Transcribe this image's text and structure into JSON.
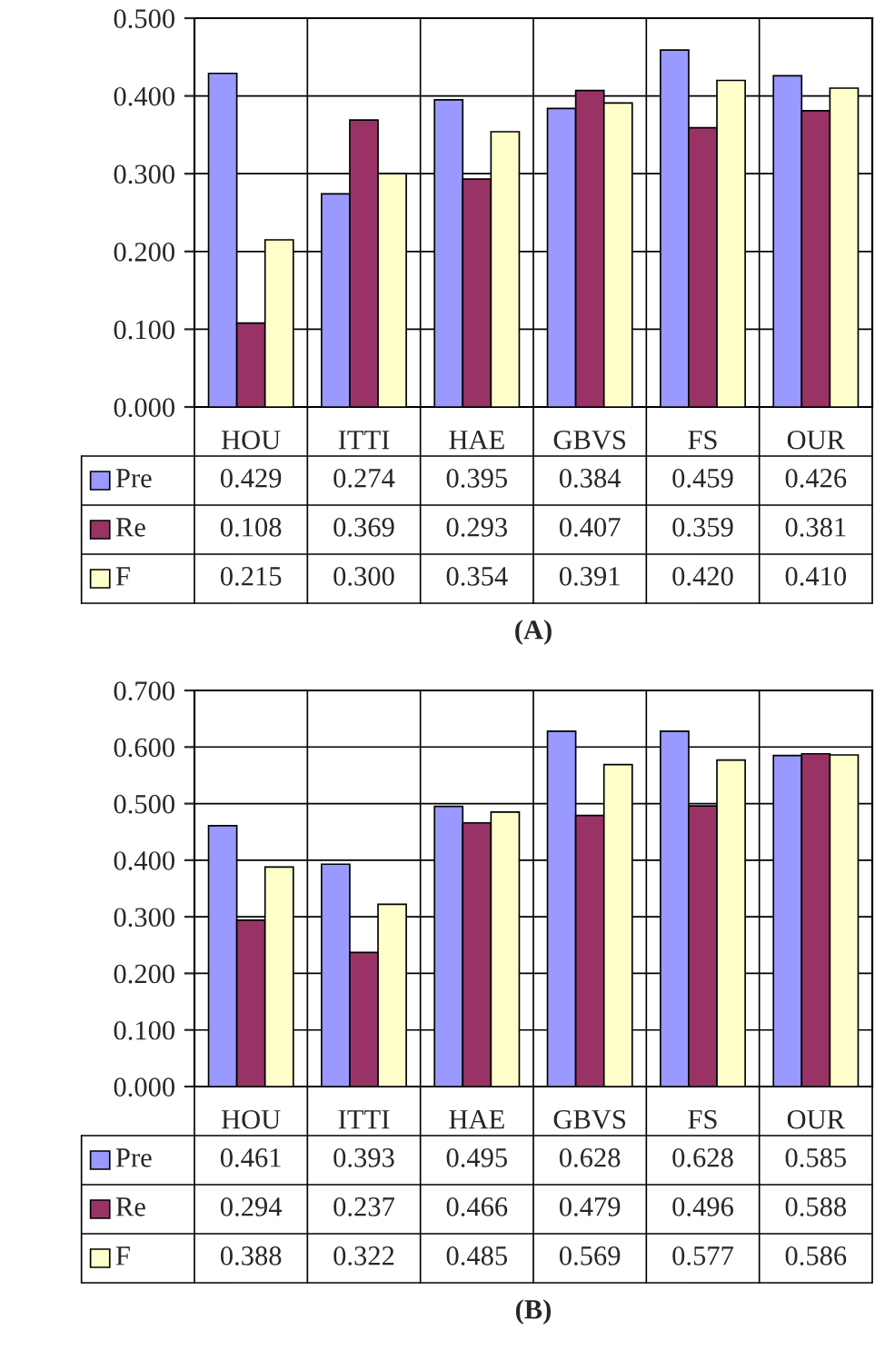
{
  "chart_data": [
    {
      "type": "bar",
      "title": "(A)",
      "categories": [
        "HOU",
        "ITTI",
        "HAE",
        "GBVS",
        "FS",
        "OUR"
      ],
      "series": [
        {
          "name": "Pre",
          "color": "#9999ff",
          "values": [
            0.429,
            0.274,
            0.395,
            0.384,
            0.459,
            0.426
          ],
          "value_labels": [
            "0.429",
            "0.274",
            "0.395",
            "0.384",
            "0.459",
            "0.426"
          ]
        },
        {
          "name": "Re",
          "color": "#993366",
          "values": [
            0.108,
            0.369,
            0.293,
            0.407,
            0.359,
            0.381
          ],
          "value_labels": [
            "0.108",
            "0.369",
            "0.293",
            "0.407",
            "0.359",
            "0.381"
          ]
        },
        {
          "name": "F",
          "color": "#ffffcc",
          "values": [
            0.215,
            0.3,
            0.354,
            0.391,
            0.42,
            0.41
          ],
          "value_labels": [
            "0.215",
            "0.300",
            "0.354",
            "0.391",
            "0.420",
            "0.410"
          ]
        }
      ],
      "ylim": [
        0,
        0.5
      ],
      "yticks": [
        {
          "value": 0,
          "label": "0.000"
        },
        {
          "value": 0.1,
          "label": "0.100"
        },
        {
          "value": 0.2,
          "label": "0.200"
        },
        {
          "value": 0.3,
          "label": "0.300"
        },
        {
          "value": 0.4,
          "label": "0.400"
        },
        {
          "value": 0.5,
          "label": "0.500"
        }
      ],
      "grid": true,
      "legend": "bottom"
    },
    {
      "type": "bar",
      "title": "(B)",
      "categories": [
        "HOU",
        "ITTI",
        "HAE",
        "GBVS",
        "FS",
        "OUR"
      ],
      "series": [
        {
          "name": "Pre",
          "color": "#9999ff",
          "values": [
            0.461,
            0.393,
            0.495,
            0.628,
            0.628,
            0.585
          ],
          "value_labels": [
            "0.461",
            "0.393",
            "0.495",
            "0.628",
            "0.628",
            "0.585"
          ]
        },
        {
          "name": "Re",
          "color": "#993366",
          "values": [
            0.294,
            0.237,
            0.466,
            0.479,
            0.496,
            0.588
          ],
          "value_labels": [
            "0.294",
            "0.237",
            "0.466",
            "0.479",
            "0.496",
            "0.588"
          ]
        },
        {
          "name": "F",
          "color": "#ffffcc",
          "values": [
            0.388,
            0.322,
            0.485,
            0.569,
            0.577,
            0.586
          ],
          "value_labels": [
            "0.388",
            "0.322",
            "0.485",
            "0.569",
            "0.577",
            "0.586"
          ]
        }
      ],
      "ylim": [
        0,
        0.7
      ],
      "yticks": [
        {
          "value": 0,
          "label": "0.000"
        },
        {
          "value": 0.1,
          "label": "0.100"
        },
        {
          "value": 0.2,
          "label": "0.200"
        },
        {
          "value": 0.3,
          "label": "0.300"
        },
        {
          "value": 0.4,
          "label": "0.400"
        },
        {
          "value": 0.5,
          "label": "0.500"
        },
        {
          "value": 0.6,
          "label": "0.600"
        },
        {
          "value": 0.7,
          "label": "0.700"
        }
      ],
      "grid": true,
      "legend": "bottom"
    }
  ]
}
